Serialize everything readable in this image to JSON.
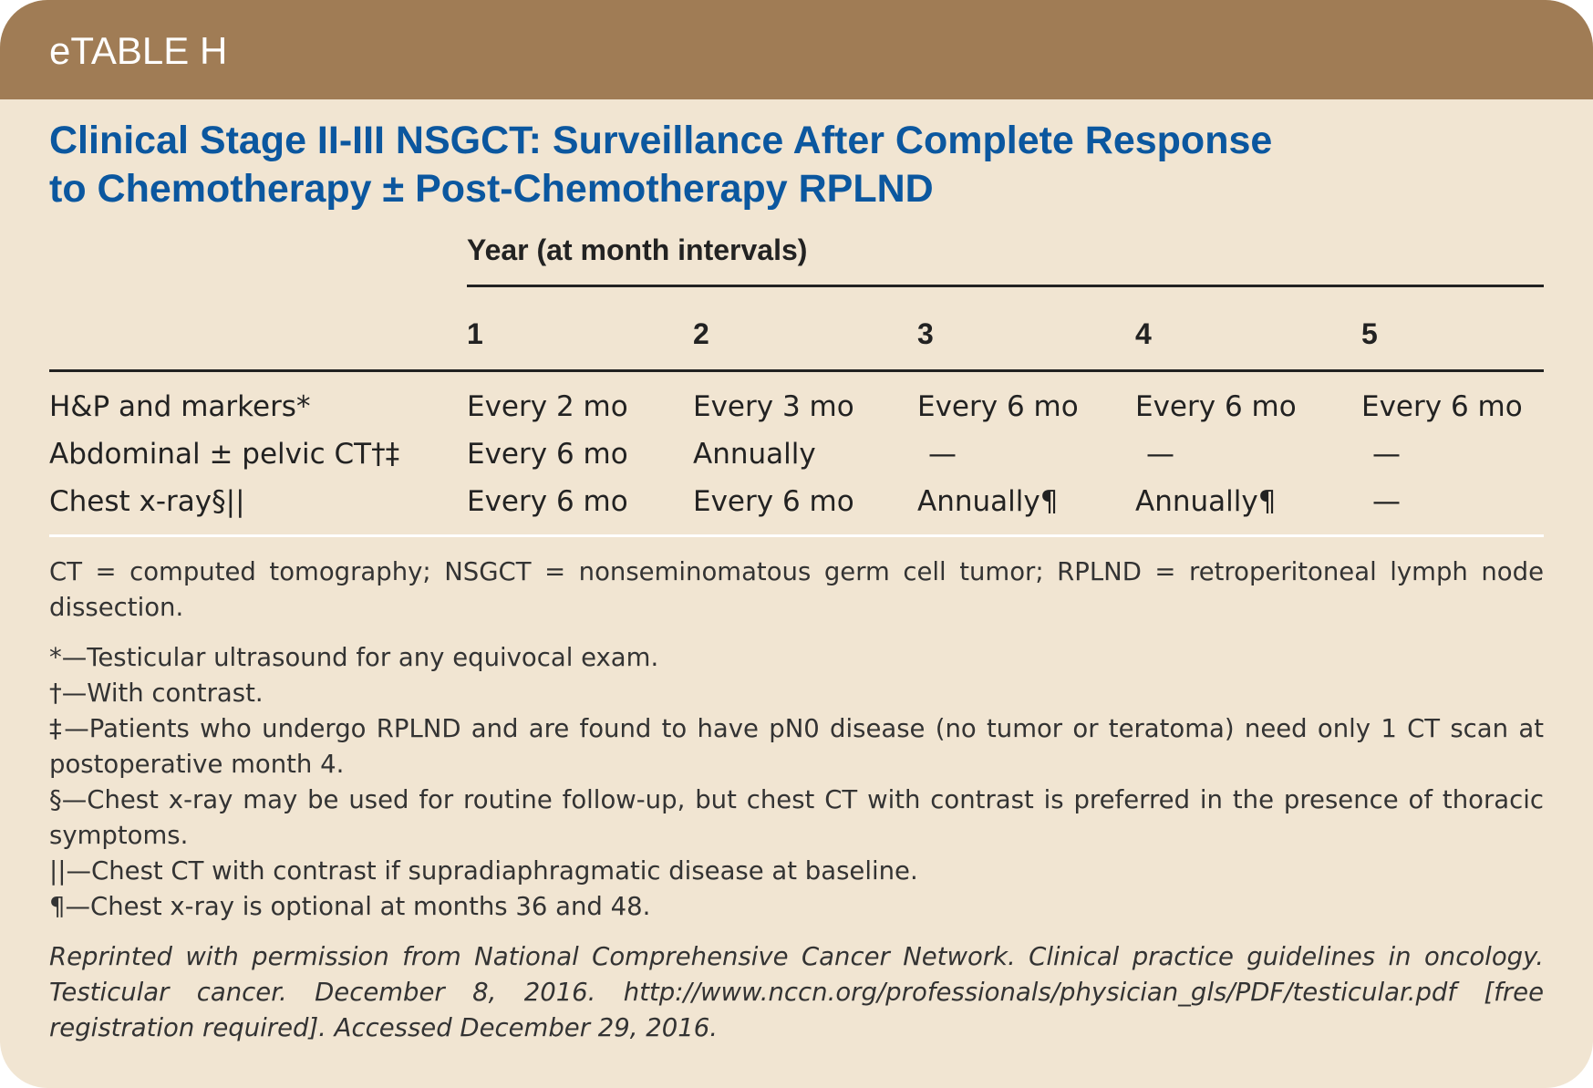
{
  "header": {
    "label": "eTABLE H"
  },
  "title": {
    "line1": "Clinical Stage II-III NSGCT: Surveillance After Complete Response",
    "line2": "to Chemotherapy ± Post-Chemotherapy RPLND"
  },
  "table": {
    "group_header": "Year (at month intervals)",
    "columns": [
      "1",
      "2",
      "3",
      "4",
      "5"
    ],
    "rows": [
      {
        "label": "H&P and markers*",
        "values": [
          "Every 2 mo",
          "Every 3 mo",
          "Every 6 mo",
          "Every 6 mo",
          "Every 6 mo"
        ]
      },
      {
        "label": "Abdominal ± pelvic CT†‡",
        "values": [
          "Every 6 mo",
          "Annually",
          "—",
          "—",
          "—"
        ]
      },
      {
        "label": "Chest x-ray§||",
        "values": [
          "Every 6 mo",
          "Every 6 mo",
          "Annually¶",
          "Annually¶",
          "—"
        ]
      }
    ]
  },
  "notes": {
    "abbrev": "CT = computed tomography; NSGCT = nonseminomatous germ cell tumor; RPLND = retroperitoneal lymph node dissection.",
    "footnotes": [
      "*—Testicular ultrasound for any equivocal exam.",
      "†—With contrast.",
      "‡—Patients who undergo RPLND and are found to have pN0 disease (no tumor or teratoma) need only 1 CT scan at postoperative month 4.",
      "§—Chest x-ray may be used for routine follow-up, but chest CT with contrast is preferred in the presence of thoracic symptoms.",
      "||—Chest CT with contrast if supradiaphragmatic disease at baseline.",
      "¶—Chest x-ray is optional at months 36 and 48."
    ],
    "reference": "Reprinted with permission from National Comprehensive Cancer Network. Clinical practice guidelines in oncology. Testicular cancer. December 8, 2016. http://www.nccn.org/professionals/physician_gls/PDF/testicular.pdf [free registration required]. Accessed December 29, 2016."
  },
  "colors": {
    "header": "#a07c55",
    "background": "#f1e5d2",
    "title": "#0b579f"
  }
}
